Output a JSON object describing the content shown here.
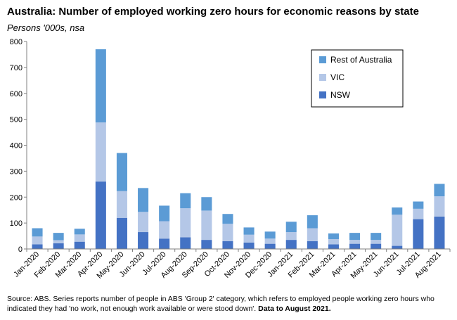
{
  "chart_data": {
    "type": "bar",
    "stacked": true,
    "title": "Australia: Number of employed working zero hours for economic reasons by state",
    "subtitle": "Persons '000s, nsa",
    "categories": [
      "Jan-2020",
      "Feb-2020",
      "Mar-2020",
      "Apr-2020",
      "May-2020",
      "Jun-2020",
      "Jul-2020",
      "Aug-2020",
      "Sep-2020",
      "Oct-2020",
      "Nov-2020",
      "Dec-2020",
      "Jan-2021",
      "Feb-2021",
      "Mar-2021",
      "Apr-2021",
      "May-2021",
      "Jun-2021",
      "Jul-2021",
      "Aug-2021"
    ],
    "series": [
      {
        "name": "NSW",
        "color": "#4472C4",
        "values": [
          18,
          22,
          28,
          260,
          120,
          65,
          40,
          45,
          35,
          30,
          25,
          20,
          35,
          30,
          18,
          20,
          20,
          12,
          115,
          125
        ]
      },
      {
        "name": "VIC",
        "color": "#B4C7E7",
        "values": [
          30,
          12,
          28,
          228,
          103,
          78,
          67,
          112,
          113,
          67,
          30,
          20,
          30,
          50,
          20,
          15,
          15,
          120,
          40,
          78
        ]
      },
      {
        "name": "Rest of Australia",
        "color": "#5B9BD5",
        "values": [
          32,
          28,
          22,
          282,
          147,
          92,
          60,
          58,
          52,
          38,
          28,
          27,
          40,
          50,
          22,
          27,
          27,
          28,
          28,
          48
        ]
      }
    ],
    "ylim": [
      0,
      800
    ],
    "yticks": [
      0,
      100,
      200,
      300,
      400,
      500,
      600,
      700,
      800
    ],
    "legend_position": "top-right",
    "legend_order": [
      "Rest of Australia",
      "VIC",
      "NSW"
    ],
    "grid": false
  },
  "footnote": {
    "text": "Source: ABS.  Series reports number of people in ABS 'Group 2' category, which  refers to employed people working zero hours who indicated they had 'no work, not enough work available or were stood down'. ",
    "bold": "Data to August 2021."
  }
}
